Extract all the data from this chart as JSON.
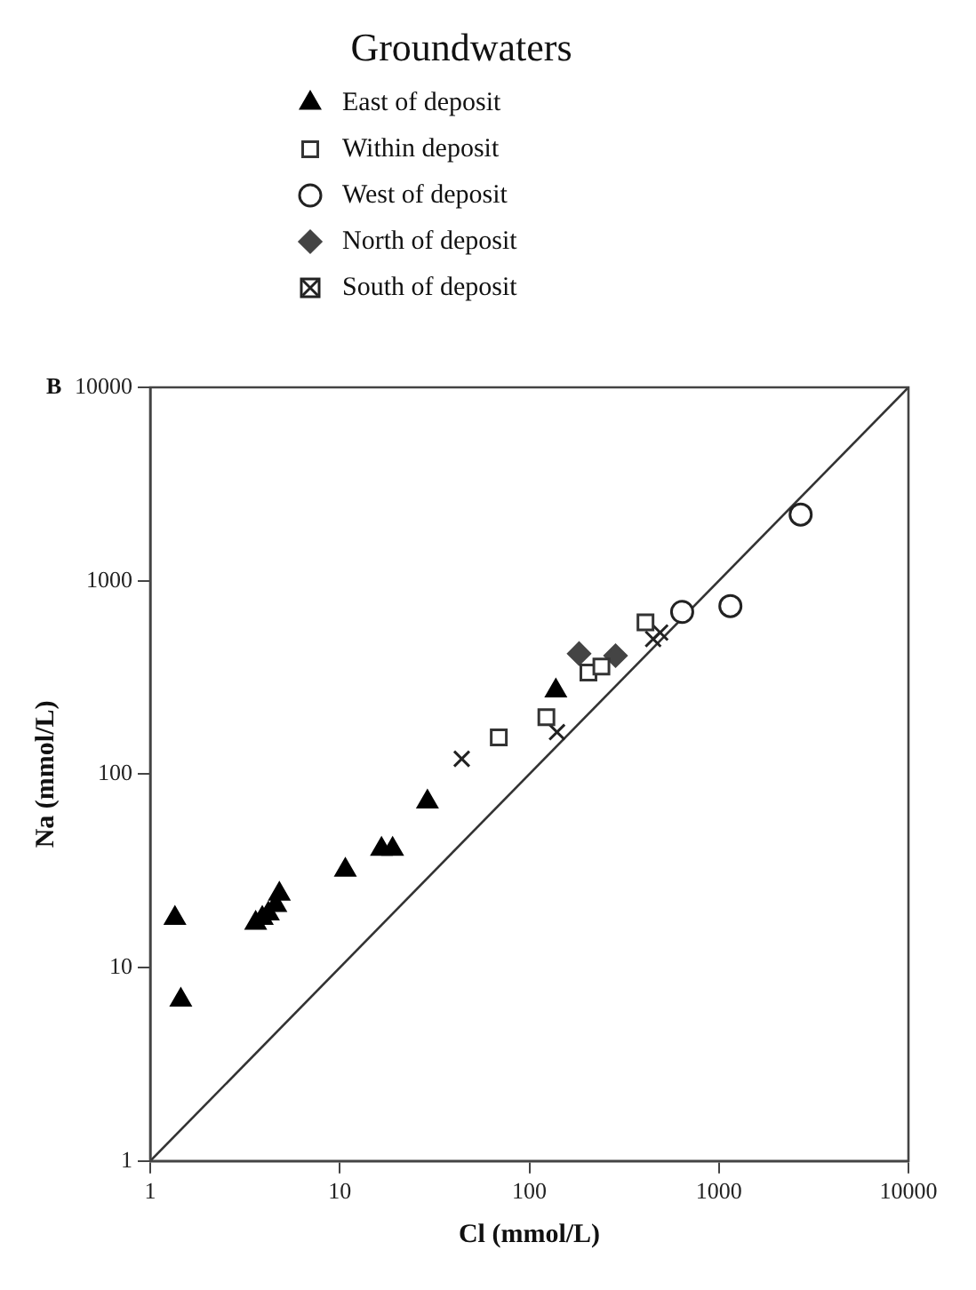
{
  "chart_data": {
    "type": "scatter",
    "legend_title": "Groundwaters",
    "xlabel": "Cl (mmol/L)",
    "ylabel": "Na (mmol/L)",
    "annotations": [
      "B"
    ],
    "log": "xy",
    "grid": false,
    "legend": "top",
    "xlim": [
      1,
      10000
    ],
    "xticks": [
      1,
      10,
      100,
      1000,
      10000
    ],
    "ylim": [
      1,
      10000
    ],
    "yticks": [
      1,
      10,
      100,
      1000,
      10000
    ],
    "series": [
      {
        "name": "East of deposit",
        "color": "#000000",
        "marker": "triangle",
        "x": [
          1.35,
          1.45,
          3.6,
          3.9,
          4.2,
          4.6,
          4.8,
          10.7,
          16.6,
          19,
          29,
          138
        ],
        "values": [
          18,
          6.8,
          17,
          18,
          19,
          21,
          24,
          32,
          41,
          41,
          72,
          270
        ]
      },
      {
        "name": "Within deposit",
        "color": "#333333",
        "marker": "square",
        "x": [
          69,
          123,
          205,
          240,
          410
        ],
        "values": [
          155,
          197,
          335,
          360,
          610
        ]
      },
      {
        "name": "West of deposit",
        "color": "#222222",
        "marker": "circle",
        "x": [
          640,
          1150,
          2700
        ],
        "values": [
          690,
          740,
          2200
        ]
      },
      {
        "name": "North of deposit",
        "color": "#444444",
        "marker": "diamond",
        "x": [
          183,
          285
        ],
        "values": [
          420,
          410
        ]
      },
      {
        "name": "South of deposit",
        "color": "#222222",
        "marker": "cross",
        "x": [
          44,
          140,
          450,
          490
        ],
        "values": [
          120,
          165,
          500,
          540
        ]
      },
      {
        "type": "line",
        "color": "#333333",
        "marker": "none",
        "line_style": "solid",
        "x": [
          1,
          10000
        ],
        "values": [
          1,
          10000
        ]
      }
    ]
  }
}
